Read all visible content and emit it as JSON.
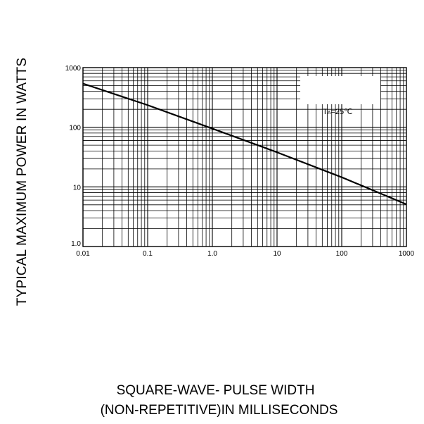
{
  "chart_data": {
    "type": "line",
    "title": "",
    "ylabel": "TYPICAL MAXIMUM POWER IN WATTS",
    "xlabel_lines": [
      "SQUARE-WAVE- PULSE WIDTH",
      "(NON-REPETITIVE)IN MILLISECONDS"
    ],
    "x_scale": "log",
    "y_scale": "log",
    "xlim": [
      0.01,
      1000
    ],
    "ylim": [
      1.0,
      1000
    ],
    "x_ticks": [
      0.01,
      0.1,
      1.0,
      10,
      100,
      1000
    ],
    "x_tick_labels": [
      "0.01",
      "0.1",
      "1.0",
      "10",
      "100",
      "1000"
    ],
    "y_ticks": [
      1.0,
      10,
      100,
      1000
    ],
    "y_tick_labels": [
      "1.0",
      "10",
      "100",
      "1000"
    ],
    "grid": true,
    "annotation": {
      "prefix": "T",
      "subscript": "A",
      "text": "=25℃"
    },
    "series": [
      {
        "x": [
          0.01,
          0.1,
          1.0,
          10,
          100,
          1000
        ],
        "y": [
          540,
          235,
          95,
          38,
          14.5,
          5.1
        ]
      }
    ]
  }
}
